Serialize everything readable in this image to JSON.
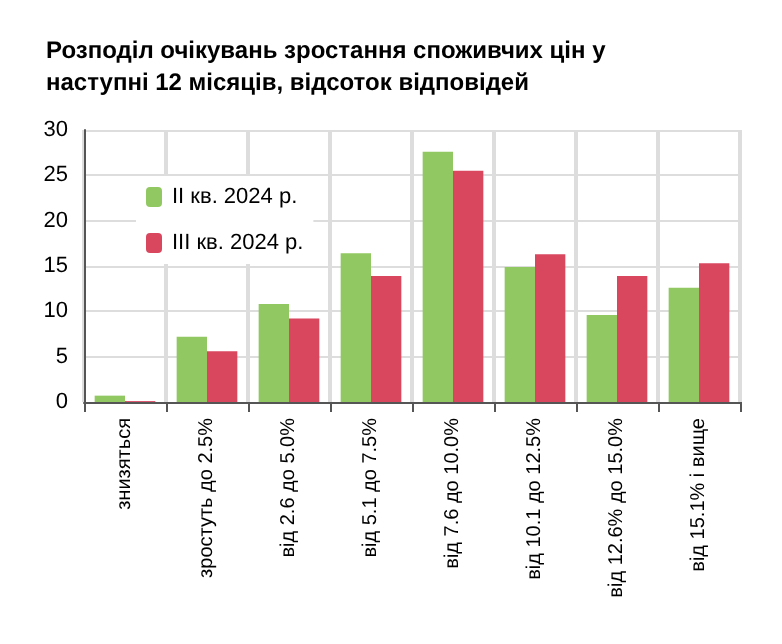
{
  "chart_data": {
    "type": "bar",
    "title": "Розподіл очікувань зростання споживчих цін у\nнаступні 12 місяців, відсоток відповідей",
    "categories": [
      "знизяться",
      "зростуть до 2.5%",
      "від 2.6 до 5.0%",
      "від 5.1 до 7.5%",
      "від 7.6 до 10.0%",
      "від 10.1 до 12.5%",
      "від 12.6% до 15.0%",
      "від 15.1% і вище"
    ],
    "series": [
      {
        "name": "II кв. 2024 р.",
        "color": "#92c862",
        "values": [
          0.7,
          7.2,
          10.8,
          16.4,
          27.6,
          14.9,
          9.6,
          12.6
        ]
      },
      {
        "name": "III кв. 2024 р.",
        "color": "#d9475f",
        "values": [
          0.1,
          5.6,
          9.2,
          13.9,
          25.5,
          16.3,
          13.9,
          15.3
        ]
      }
    ],
    "ylim": [
      0,
      30
    ],
    "yticks": [
      0,
      5,
      10,
      15,
      20,
      25,
      30
    ],
    "grid": true,
    "legend": "top left"
  }
}
